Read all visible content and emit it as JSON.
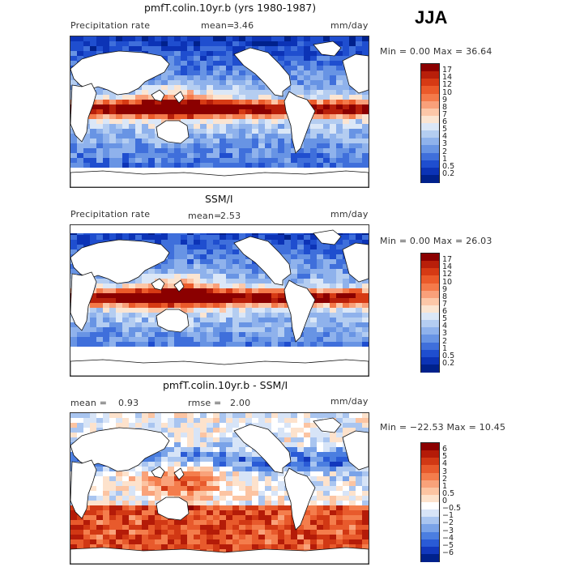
{
  "season": "JJA",
  "panels": [
    {
      "title": "pmfT.colin.10yr.b (yrs 1980-1987)",
      "left_label": "Precipitation rate",
      "mean_label": "mean=",
      "mean_value": "3.46",
      "units": "mm/day",
      "minmax": "Min =    0.00 Max =   36.64",
      "colorbar_ticks": [
        "17",
        "14",
        "12",
        "10",
        "9",
        "8",
        "7",
        "6",
        "5",
        "4",
        "3",
        "2",
        "1",
        "0.5",
        "0.2"
      ],
      "colorbar_colors": [
        "#8b0000",
        "#b81f0a",
        "#d63a14",
        "#eb5a2a",
        "#f47a4a",
        "#f9a07a",
        "#fcc7a8",
        "#fbe5d2",
        "#dbe7f7",
        "#b4cdf1",
        "#8fb2ec",
        "#6894e4",
        "#3f6fdb",
        "#1f4ecf",
        "#0c33b6",
        "#00218c"
      ],
      "map_style": "model"
    },
    {
      "title": "SSM/I",
      "left_label": "Precipitation rate",
      "mean_label": "mean=",
      "mean_value": "2.53",
      "units": "mm/day",
      "minmax": "Min =    0.00 Max =   26.03",
      "colorbar_ticks": [
        "17",
        "14",
        "12",
        "10",
        "9",
        "8",
        "7",
        "6",
        "5",
        "4",
        "3",
        "2",
        "1",
        "0.5",
        "0.2"
      ],
      "colorbar_colors": [
        "#8b0000",
        "#b81f0a",
        "#d63a14",
        "#eb5a2a",
        "#f47a4a",
        "#f9a07a",
        "#fcc7a8",
        "#fbe5d2",
        "#dbe7f7",
        "#b4cdf1",
        "#8fb2ec",
        "#6894e4",
        "#3f6fdb",
        "#1f4ecf",
        "#0c33b6",
        "#00218c"
      ],
      "map_style": "obs"
    },
    {
      "title": "pmfT.colin.10yr.b - SSM/I",
      "left_label": "mean =",
      "mean_label": "",
      "mean_value": "0.93",
      "rmse_label": "rmse =",
      "rmse_value": "2.00",
      "units": "mm/day",
      "minmax": "Min = −22.53 Max =   10.45",
      "colorbar_ticks": [
        "6",
        "5",
        "4",
        "3",
        "2",
        "1",
        "0.5",
        "0",
        "−0.5",
        "−1",
        "−2",
        "−3",
        "−4",
        "−5",
        "−6"
      ],
      "colorbar_colors": [
        "#8b0000",
        "#b41b08",
        "#d13814",
        "#e85a2c",
        "#f47d4c",
        "#f9a27a",
        "#fcc4a2",
        "#fde2cc",
        "#ffffff",
        "#d7e4f7",
        "#a9c5f0",
        "#7aa3e8",
        "#4b7ee0",
        "#2a5bd6",
        "#1238bd",
        "#00218c"
      ],
      "map_style": "diff"
    }
  ]
}
